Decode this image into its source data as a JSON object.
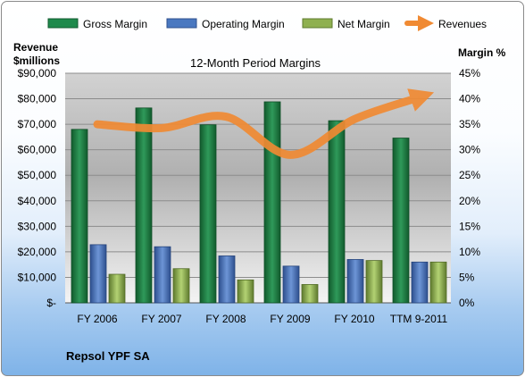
{
  "chart_data": {
    "type": "bar",
    "title": "12-Month Period Margins",
    "categories": [
      "FY 2006",
      "FY 2007",
      "FY 2008",
      "FY 2009",
      "FY 2010",
      "TTM 9-2011"
    ],
    "series": [
      {
        "name": "Gross Margin",
        "axis": "right",
        "color": "#1f8a4c",
        "values": [
          34.0,
          38.2,
          34.9,
          39.4,
          35.7,
          32.3
        ]
      },
      {
        "name": "Operating Margin",
        "axis": "right",
        "color": "#4a78c0",
        "values": [
          11.4,
          11.0,
          9.2,
          7.2,
          8.5,
          8.0
        ]
      },
      {
        "name": "Net Margin",
        "axis": "right",
        "color": "#8fb050",
        "values": [
          5.6,
          6.7,
          4.5,
          3.6,
          8.3,
          8.0
        ]
      },
      {
        "name": "Revenues",
        "axis": "left",
        "type": "line",
        "color": "#f08a33",
        "values": [
          70000,
          68500,
          73000,
          58000,
          72000,
          80500
        ]
      }
    ],
    "left_axis": {
      "label_line1": "Revenue",
      "label_line2": "$millions",
      "ylim": [
        0,
        90000
      ],
      "ticks": [
        "$-",
        "$10,000",
        "$20,000",
        "$30,000",
        "$40,000",
        "$50,000",
        "$60,000",
        "$70,000",
        "$80,000",
        "$90,000"
      ]
    },
    "right_axis": {
      "label": "Margin %",
      "ylim": [
        0,
        45
      ],
      "ticks": [
        "0%",
        "5%",
        "10%",
        "15%",
        "20%",
        "25%",
        "30%",
        "35%",
        "40%",
        "45%"
      ]
    },
    "legend_position": "top",
    "grid": true
  },
  "company": "Repsol YPF SA"
}
